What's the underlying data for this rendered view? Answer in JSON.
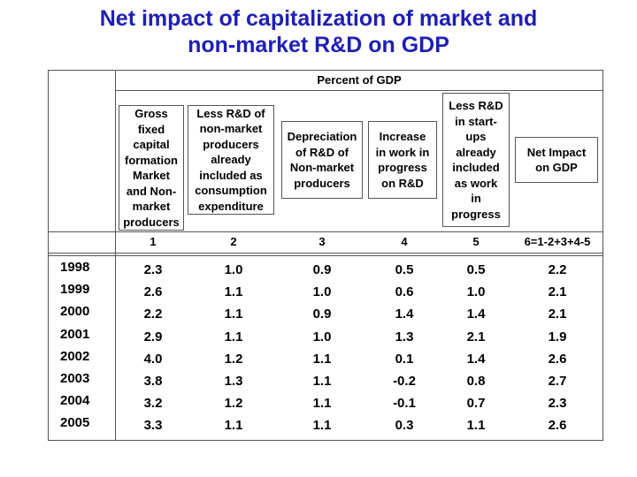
{
  "title": {
    "line1": "Net impact of capitalization of market and",
    "line2": "non-market R&D on GDP"
  },
  "table": {
    "unit_header": "Percent of GDP",
    "column_headers": [
      "Gross\nfixed\ncapital\nformation\nMarket\nand Non-\nmarket\nproducers",
      "Less R&D of\nnon-market\nproducers\nalready\nincluded as\nconsumption\nexpenditure",
      "Depreciation\nof R&D of\nNon-market\nproducers",
      "Increase\nin work in\nprogress\non R&D",
      "Less R&D\nin start-\nups\nalready\nincluded\nas work\nin\nprogress",
      "Net Impact\non GDP"
    ],
    "column_numbers": [
      "1",
      "2",
      "3",
      "4",
      "5",
      "6=1-2+3+4-5"
    ],
    "rows": [
      {
        "year": "1998",
        "values": [
          "2.3",
          "1.0",
          "0.9",
          "0.5",
          "0.5",
          "2.2"
        ]
      },
      {
        "year": "1999",
        "values": [
          "2.6",
          "1.1",
          "1.0",
          "0.6",
          "1.0",
          "2.1"
        ]
      },
      {
        "year": "2000",
        "values": [
          "2.2",
          "1.1",
          "0.9",
          "1.4",
          "1.4",
          "2.1"
        ]
      },
      {
        "year": "2001",
        "values": [
          "2.9",
          "1.1",
          "1.0",
          "1.3",
          "2.1",
          "1.9"
        ]
      },
      {
        "year": "2002",
        "values": [
          "4.0",
          "1.2",
          "1.1",
          "0.1",
          "1.4",
          "2.6"
        ]
      },
      {
        "year": "2003",
        "values": [
          "3.8",
          "1.3",
          "1.1",
          "-0.2",
          "0.8",
          "2.7"
        ]
      },
      {
        "year": "2004",
        "values": [
          "3.2",
          "1.2",
          "1.1",
          "-0.1",
          "0.7",
          "2.3"
        ]
      },
      {
        "year": "2005",
        "values": [
          "3.3",
          "1.1",
          "1.1",
          "0.3",
          "1.1",
          "2.6"
        ]
      }
    ]
  }
}
